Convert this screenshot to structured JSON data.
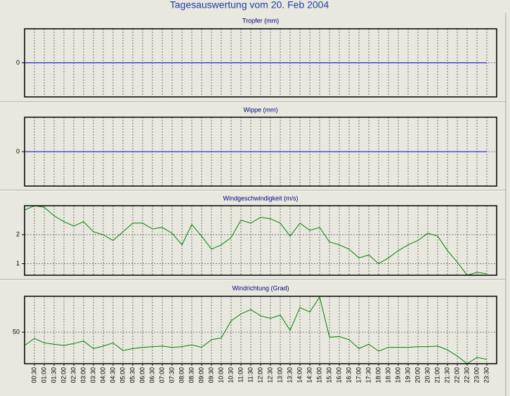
{
  "title": "Tagesauswertung vom 20. Feb 2004",
  "chart_data": [
    {
      "type": "line",
      "title": "Tropfer (mm)",
      "color": "#0000cc",
      "grid": true,
      "ylim": [
        -1,
        1
      ],
      "yticks": [
        0
      ],
      "values": [
        0,
        0,
        0,
        0,
        0,
        0,
        0,
        0,
        0,
        0,
        0,
        0,
        0,
        0,
        0,
        0,
        0,
        0,
        0,
        0,
        0,
        0,
        0,
        0,
        0,
        0,
        0,
        0,
        0,
        0,
        0,
        0,
        0,
        0,
        0,
        0,
        0,
        0,
        0,
        0,
        0,
        0,
        0,
        0,
        0,
        0,
        0,
        0
      ]
    },
    {
      "type": "line",
      "title": "Wippe (mm)",
      "color": "#0000cc",
      "grid": true,
      "ylim": [
        -1,
        1
      ],
      "yticks": [
        0
      ],
      "values": [
        0,
        0,
        0,
        0,
        0,
        0,
        0,
        0,
        0,
        0,
        0,
        0,
        0,
        0,
        0,
        0,
        0,
        0,
        0,
        0,
        0,
        0,
        0,
        0,
        0,
        0,
        0,
        0,
        0,
        0,
        0,
        0,
        0,
        0,
        0,
        0,
        0,
        0,
        0,
        0,
        0,
        0,
        0,
        0,
        0,
        0,
        0,
        0
      ]
    },
    {
      "type": "line",
      "title": "Windgeschwindigkeit (m/s)",
      "color": "#008000",
      "grid": true,
      "ylim": [
        0.6,
        3.0
      ],
      "yticks": [
        1,
        2
      ],
      "values": [
        2.85,
        3.0,
        2.95,
        2.65,
        2.45,
        2.3,
        2.45,
        2.1,
        2.0,
        1.8,
        2.1,
        2.4,
        2.4,
        2.2,
        2.25,
        2.05,
        1.65,
        2.35,
        1.95,
        1.5,
        1.65,
        1.9,
        2.5,
        2.4,
        2.6,
        2.55,
        2.4,
        1.95,
        2.4,
        2.15,
        2.25,
        1.75,
        1.65,
        1.5,
        1.2,
        1.3,
        1.0,
        1.2,
        1.45,
        1.65,
        1.8,
        2.05,
        1.95,
        1.45,
        1.05,
        0.6,
        0.7,
        0.65
      ]
    },
    {
      "type": "line",
      "title": "Windrichtung (Grad)",
      "color": "#008000",
      "grid": true,
      "ylim": [
        0,
        107
      ],
      "yticks": [
        50
      ],
      "values": [
        29,
        40,
        33,
        31,
        29,
        32,
        36,
        24,
        28,
        33,
        21,
        24,
        26,
        27,
        28,
        26,
        27,
        30,
        26,
        38,
        41,
        68,
        79,
        86,
        76,
        72,
        77,
        53,
        89,
        82,
        106,
        42,
        43,
        38,
        24,
        31,
        20,
        26,
        26,
        26,
        27,
        27,
        28,
        22,
        12,
        0,
        10,
        7
      ],
      "categories": [
        null,
        "00:30",
        "01:00",
        "01:30",
        "02:00",
        "02:30",
        "03:00",
        "03:30",
        "04:00",
        "04:30",
        "05:00",
        "05:30",
        "06:00",
        "06:30",
        "07:00",
        "07:30",
        "08:00",
        "08:30",
        "09:00",
        "09:30",
        "10:00",
        "10:30",
        "11:00",
        "11:30",
        "12:00",
        "12:30",
        "13:00",
        "13:30",
        "14:00",
        "14:30",
        "15:00",
        "15:30",
        "16:00",
        "16:30",
        "17:00",
        "17:30",
        "18:00",
        "18:30",
        "19:00",
        "19:30",
        "20:00",
        "20:30",
        "21:00",
        "21:30",
        "22:00",
        "22:30",
        "23:00",
        "23:30"
      ]
    }
  ]
}
